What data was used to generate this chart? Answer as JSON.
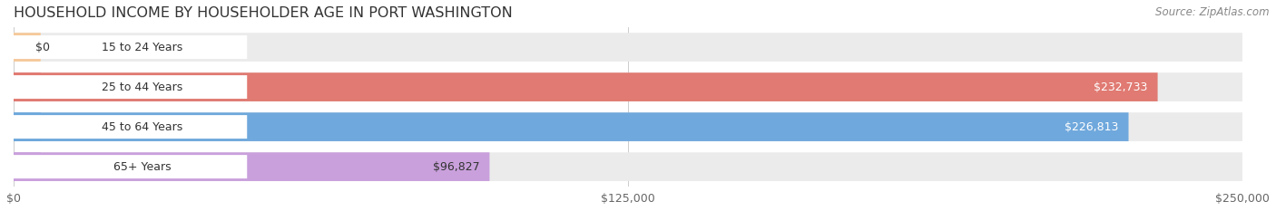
{
  "title": "HOUSEHOLD INCOME BY HOUSEHOLDER AGE IN PORT WASHINGTON",
  "source": "Source: ZipAtlas.com",
  "categories": [
    "15 to 24 Years",
    "25 to 44 Years",
    "45 to 64 Years",
    "65+ Years"
  ],
  "values": [
    0,
    232733,
    226813,
    96827
  ],
  "bar_colors": [
    "#f5c99a",
    "#e07a72",
    "#6fa8dc",
    "#c9a0dc"
  ],
  "bar_bg_color": "#ebebeb",
  "label_bg_color": "#ffffff",
  "label_colors": [
    "#333333",
    "#ffffff",
    "#ffffff",
    "#333333"
  ],
  "max_value": 250000,
  "x_ticks": [
    0,
    125000,
    250000
  ],
  "x_tick_labels": [
    "$0",
    "$125,000",
    "$250,000"
  ],
  "value_labels": [
    "$0",
    "$232,733",
    "$226,813",
    "$96,827"
  ],
  "background_color": "#ffffff",
  "title_fontsize": 11.5,
  "source_fontsize": 8.5,
  "label_fontsize": 9,
  "tick_fontsize": 9
}
